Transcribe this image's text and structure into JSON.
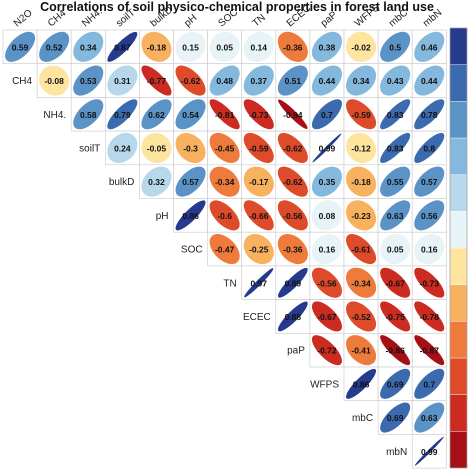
{
  "chart_data": {
    "type": "heatmap",
    "subtype": "correlation-ellipse-upper-triangle",
    "title": "Correlations of soil physico-chemical properties in forest land use",
    "variables": [
      "N2O",
      "CH4",
      "NH4.",
      "soilT",
      "bulkD",
      "pH",
      "SOC",
      "TN",
      "ECEC",
      "paP",
      "WFPS",
      "mbC",
      "mbN"
    ],
    "matrix": [
      [
        0.59,
        0.52,
        0.34,
        0.87,
        -0.18,
        0.15,
        0.05,
        0.14,
        -0.36,
        0.38,
        -0.02,
        0.5,
        0.46
      ],
      [
        null,
        -0.08,
        0.53,
        0.31,
        -0.77,
        -0.62,
        0.48,
        0.37,
        0.51,
        0.44,
        0.34,
        0.43,
        0.44
      ],
      [
        null,
        null,
        0.58,
        0.79,
        0.62,
        0.54,
        -0.81,
        -0.73,
        -0.94,
        0.7,
        -0.59,
        0.83,
        0.78
      ],
      [
        null,
        null,
        null,
        0.24,
        -0.05,
        -0.3,
        -0.45,
        -0.59,
        -0.62,
        0.99,
        -0.12,
        0.83,
        0.8
      ],
      [
        null,
        null,
        null,
        null,
        0.32,
        0.57,
        -0.34,
        -0.17,
        -0.62,
        0.35,
        -0.18,
        0.55,
        0.57
      ],
      [
        null,
        null,
        null,
        null,
        null,
        0.86,
        -0.6,
        -0.66,
        -0.56,
        0.08,
        -0.23,
        0.63,
        0.56
      ],
      [
        null,
        null,
        null,
        null,
        null,
        null,
        -0.47,
        -0.25,
        -0.36,
        0.16,
        -0.61,
        0.05,
        0.16
      ],
      [
        null,
        null,
        null,
        null,
        null,
        null,
        null,
        0.97,
        0.89,
        -0.56,
        -0.34,
        -0.67,
        -0.73
      ],
      [
        null,
        null,
        null,
        null,
        null,
        null,
        null,
        null,
        0.88,
        -0.67,
        -0.52,
        -0.75,
        -0.78
      ],
      [
        null,
        null,
        null,
        null,
        null,
        null,
        null,
        null,
        null,
        -0.72,
        -0.41,
        -0.86,
        -0.87
      ],
      [
        null,
        null,
        null,
        null,
        null,
        null,
        null,
        null,
        null,
        null,
        0.86,
        0.69,
        0.7
      ],
      [
        null,
        null,
        null,
        null,
        null,
        null,
        null,
        null,
        null,
        null,
        null,
        0.69,
        0.63
      ],
      [
        null,
        null,
        null,
        null,
        null,
        null,
        null,
        null,
        null,
        null,
        null,
        null,
        0.99
      ]
    ],
    "color_scale": {
      "range": [
        -1,
        1
      ],
      "colors": [
        "#a50f15",
        "#cb2b20",
        "#de4b2b",
        "#ee7a3c",
        "#f8b15f",
        "#fde5a0",
        "#e7f3f7",
        "#b6d8ea",
        "#84b8dc",
        "#5b93c7",
        "#3c6aae",
        "#263a8e"
      ]
    },
    "legend": "right",
    "grid": true
  }
}
